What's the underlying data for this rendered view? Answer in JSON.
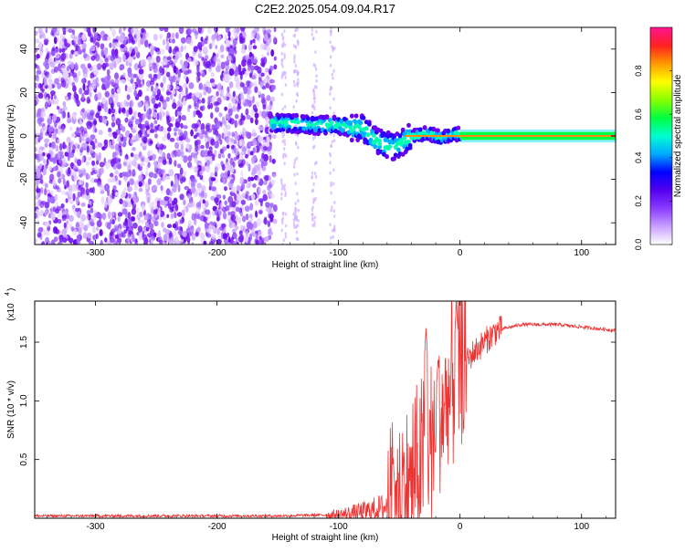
{
  "title": "C2E2.2025.054.09.04.R17",
  "chart_data": [
    {
      "type": "heatmap",
      "xlabel": "Height of straight line (km)",
      "ylabel": "Frequency (Hz)",
      "xlim": [
        -350,
        128
      ],
      "ylim": [
        -50,
        50
      ],
      "xticks": [
        -300,
        -200,
        -100,
        0,
        100
      ],
      "yticks": [
        -40,
        -20,
        0,
        20,
        40
      ],
      "colorbar": {
        "label": "Normalized spectral amplitude",
        "range": [
          0,
          1
        ],
        "ticks": [
          0.0,
          0.2,
          0.4,
          0.6,
          0.8
        ],
        "colors": [
          "#ffffff",
          "#c8a0ff",
          "#8a3cff",
          "#5500ee",
          "#0000ff",
          "#00aaff",
          "#00ffd0",
          "#00ff40",
          "#8aff00",
          "#ffff00",
          "#ff9900",
          "#ff2020",
          "#ff1493"
        ]
      },
      "ridge": {
        "x": [
          -155,
          -140,
          -120,
          -100,
          -90,
          -80,
          -70,
          -62,
          -55,
          -50,
          -45,
          -40,
          -35,
          -30,
          -25,
          -20,
          -15,
          -10,
          -5,
          0,
          50,
          128
        ],
        "frequency": [
          6,
          6,
          5,
          5,
          4,
          4,
          -2,
          -4,
          -5,
          -4,
          -2,
          0,
          0,
          1,
          1,
          0,
          -1,
          0,
          1,
          1,
          1,
          1
        ]
      },
      "noise_cutoff_x": -160
    },
    {
      "type": "line",
      "xlabel": "Height of straight line (km)",
      "ylabel": "SNR (10 * v/v)",
      "scale_label": "(x10",
      "scale_exp": "4",
      "xlim": [
        -350,
        128
      ],
      "ylim": [
        0,
        1.85
      ],
      "xticks": [
        -300,
        -200,
        -100,
        0,
        100
      ],
      "yticks": [
        0.5,
        1.0,
        1.5
      ],
      "ytick_labels": [
        "0.5",
        "1.0",
        "1.5"
      ],
      "color": "#ee3333",
      "envelope": {
        "x": [
          -350,
          -150,
          -100,
          -80,
          -60,
          -50,
          -40,
          -30,
          -20,
          -10,
          0,
          10,
          20,
          30,
          50,
          80,
          128
        ],
        "y": [
          0.02,
          0.02,
          0.03,
          0.05,
          0.1,
          0.2,
          0.3,
          0.5,
          0.75,
          1.0,
          1.25,
          1.4,
          1.5,
          1.6,
          1.65,
          1.65,
          1.6
        ]
      },
      "peaks": [
        {
          "x": -55,
          "y": 0.52
        },
        {
          "x": -28,
          "y": 1.62
        },
        {
          "x": -18,
          "y": 1.38
        },
        {
          "x": -3,
          "y": 1.83
        }
      ]
    }
  ]
}
